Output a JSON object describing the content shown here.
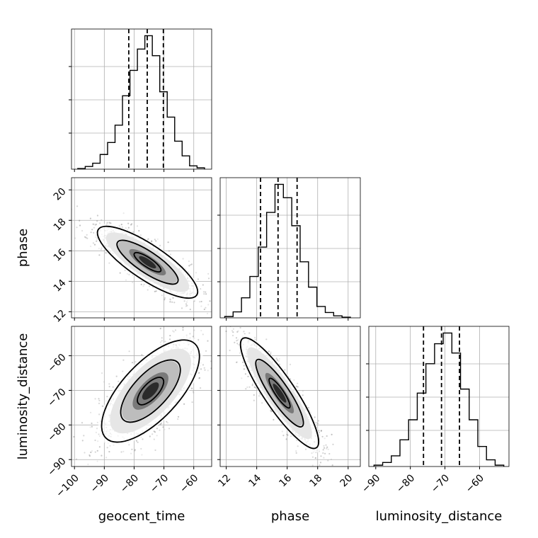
{
  "chart_data": {
    "type": "corner",
    "parameters": [
      "geocent_time",
      "phase",
      "luminosity_distance"
    ],
    "axes": {
      "geocent_time": {
        "range": [
          -101,
          -54
        ],
        "ticks": [
          -100,
          -90,
          -80,
          -70,
          -60
        ],
        "tick_labels": [
          "−100",
          "−90",
          "−80",
          "−70",
          "−60"
        ]
      },
      "phase": {
        "range": [
          11.6,
          20.8
        ],
        "ticks": [
          12,
          14,
          16,
          18,
          20
        ],
        "tick_labels": [
          "12",
          "14",
          "16",
          "18",
          "20"
        ]
      },
      "luminosity_distance": {
        "range": [
          -92,
          -51.5
        ],
        "ticks": [
          -90,
          -80,
          -70,
          -60
        ],
        "tick_labels": [
          "−90",
          "−80",
          "−70",
          "−60"
        ]
      }
    },
    "marginals": [
      {
        "parameter": "geocent_time",
        "bin_edges": [
          -98.9,
          -96.4,
          -93.9,
          -91.4,
          -88.9,
          -86.4,
          -83.9,
          -81.4,
          -78.9,
          -76.4,
          -73.9,
          -71.4,
          -68.9,
          -66.4,
          -63.9,
          -61.4,
          -58.9,
          -56.4
        ],
        "counts": [
          0.005,
          0.02,
          0.045,
          0.11,
          0.2,
          0.33,
          0.55,
          0.74,
          0.9,
          1.0,
          0.85,
          0.58,
          0.39,
          0.21,
          0.1,
          0.025,
          0.01
        ],
        "quantiles": [
          -81.8,
          -75.6,
          -70.2
        ]
      },
      {
        "parameter": "phase",
        "bin_edges": [
          11.9,
          12.45,
          13.0,
          13.55,
          14.1,
          14.65,
          15.2,
          15.75,
          16.3,
          16.85,
          17.4,
          17.95,
          18.5,
          19.05,
          19.6,
          20.15
        ],
        "counts": [
          0.01,
          0.045,
          0.15,
          0.31,
          0.53,
          0.79,
          1.0,
          0.9,
          0.69,
          0.42,
          0.23,
          0.085,
          0.04,
          0.015,
          0.005
        ],
        "quantiles": [
          14.25,
          15.4,
          16.65
        ]
      },
      {
        "parameter": "luminosity_distance",
        "bin_edges": [
          -90.5,
          -88.0,
          -85.5,
          -83.0,
          -80.5,
          -78.0,
          -75.5,
          -73.0,
          -70.5,
          -68.0,
          -65.5,
          -63.0,
          -60.5,
          -58.0,
          -55.5,
          -53.0
        ],
        "counts": [
          0.01,
          0.03,
          0.08,
          0.2,
          0.35,
          0.55,
          0.77,
          0.92,
          1.0,
          0.85,
          0.58,
          0.35,
          0.15,
          0.05,
          0.01
        ],
        "quantiles": [
          -76.2,
          -71.0,
          -65.8
        ]
      }
    ],
    "joint": [
      {
        "x": "geocent_time",
        "y": "phase",
        "center": [
          -75.5,
          15.25
        ],
        "std": [
          8.2,
          1.15
        ],
        "correlation": -0.82
      },
      {
        "x": "geocent_time",
        "y": "luminosity_distance",
        "center": [
          -74.5,
          -70.2
        ],
        "std": [
          8.0,
          7.2
        ],
        "correlation": 0.68
      },
      {
        "x": "phase",
        "y": "luminosity_distance",
        "center": [
          15.5,
          -70.8
        ],
        "std": [
          1.25,
          7.8
        ],
        "correlation": -0.88
      }
    ],
    "colors": {
      "points": "#808080",
      "lines": "#000000",
      "grid": "#b0b0b0"
    },
    "grid": true
  }
}
